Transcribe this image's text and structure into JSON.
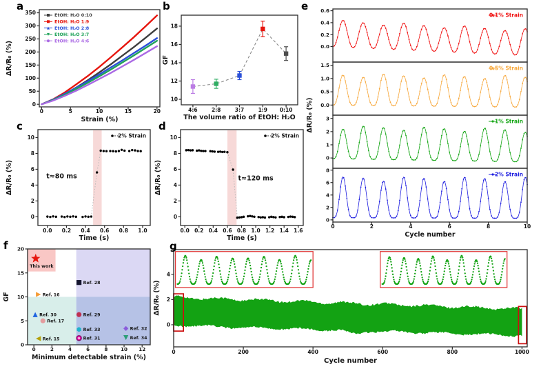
{
  "panel_labels": {
    "a": "a",
    "b": "b",
    "c": "c",
    "d": "d",
    "e": "e",
    "f": "f",
    "g": "g"
  },
  "colors": {
    "frame": "#2b2b2b",
    "text": "#151515",
    "sensor_blue": "#1a18e8",
    "shade_pink": "#f7d9d8",
    "endurance_green": "#13a213",
    "inset_border": "#e23b3b",
    "zoom_box": "#cc1010"
  },
  "chart_data": [
    {
      "panel": "a",
      "type": "line",
      "xlabel": "Strain (%)",
      "ylabel": "ΔR/R₀ (%)",
      "xlim": [
        -0.4,
        20.5
      ],
      "ylim": [
        -10,
        362
      ],
      "xticks": [
        [
          0,
          "0"
        ],
        [
          5,
          "5"
        ],
        [
          10,
          "10"
        ],
        [
          15,
          "15"
        ],
        [
          20,
          "20"
        ]
      ],
      "yticks": [
        [
          0,
          "0"
        ],
        [
          50,
          "50"
        ],
        [
          100,
          "100"
        ],
        [
          150,
          "150"
        ],
        [
          200,
          "200"
        ],
        [
          250,
          "250"
        ],
        [
          300,
          "300"
        ],
        [
          350,
          "350"
        ]
      ],
      "x": [
        0,
        2,
        4,
        6,
        8,
        10,
        12,
        14,
        16,
        18,
        20
      ],
      "legend_position": "top-left",
      "series": [
        {
          "name": "EtOH: H₂O 0:10",
          "color": "#3d3d3d",
          "marker": "square",
          "values": [
            0,
            16,
            39,
            64,
            92,
            122,
            153,
            186,
            219,
            254,
            290
          ]
        },
        {
          "name": "EtOH: H₂O 1:9",
          "color": "#e6150d",
          "marker": "square",
          "values": [
            0,
            19,
            45,
            76,
            108,
            143,
            180,
            218,
            257,
            298,
            340
          ]
        },
        {
          "name": "EtOH: H₂O 2:8",
          "color": "#2b50d9",
          "marker": "triangle-up",
          "values": [
            0,
            18,
            40,
            63,
            88,
            114,
            141,
            168,
            196,
            224,
            253
          ]
        },
        {
          "name": "EtOH: H₂O 3:7",
          "color": "#20a35a",
          "marker": "triangle-down",
          "values": [
            0,
            16,
            36,
            59,
            82,
            107,
            133,
            160,
            187,
            215,
            243
          ]
        },
        {
          "name": "EtOH: H₂O 4:6",
          "color": "#aa69e4",
          "marker": "circle",
          "values": [
            0,
            14,
            32,
            52,
            74,
            97,
            120,
            145,
            170,
            196,
            222
          ]
        }
      ]
    },
    {
      "panel": "b",
      "type": "scatter-error",
      "xlabel": "The volume ratio of EtOH: H₂O",
      "ylabel": "GF",
      "categories": [
        "4:6",
        "2:8",
        "3:7",
        "1:9",
        "0:10"
      ],
      "values": [
        11.4,
        11.7,
        12.6,
        17.7,
        15.0
      ],
      "errors": [
        0.75,
        0.5,
        0.45,
        0.85,
        0.75
      ],
      "colors": [
        "#bb7ce4",
        "#2fae63",
        "#2b50d9",
        "#e6150d",
        "#4c4c4c"
      ],
      "ylim": [
        9.4,
        19.2
      ],
      "yticks": [
        [
          10,
          "10"
        ],
        [
          12,
          "12"
        ],
        [
          14,
          "14"
        ],
        [
          16,
          "16"
        ],
        [
          18,
          "18"
        ]
      ],
      "connector": "dashed"
    },
    {
      "panel": "c",
      "type": "scatter",
      "xlabel": "Time (s)",
      "ylabel": "ΔR/R₀ (%)",
      "legend": "2% Strain",
      "annotation": "t≈80 ms",
      "annotation_xy": [
        0.15,
        4.85
      ],
      "response_region": [
        0.48,
        0.57
      ],
      "xlim": [
        -0.1,
        1.08
      ],
      "ylim": [
        -1.1,
        11
      ],
      "xticks": [
        [
          0,
          "0.0"
        ],
        [
          0.2,
          "0.2"
        ],
        [
          0.4,
          "0.4"
        ],
        [
          0.6,
          "0.6"
        ],
        [
          0.8,
          "0.8"
        ],
        [
          1.0,
          "1.0"
        ]
      ],
      "yticks": [
        [
          0,
          "0"
        ],
        [
          2,
          "2"
        ],
        [
          4,
          "4"
        ],
        [
          6,
          "6"
        ],
        [
          8,
          "8"
        ],
        [
          10,
          "10"
        ]
      ],
      "points_x": [
        0.0,
        0.03,
        0.06,
        0.09,
        0.15,
        0.18,
        0.21,
        0.24,
        0.27,
        0.3,
        0.37,
        0.4,
        0.43,
        0.46,
        0.52,
        0.56,
        0.59,
        0.62,
        0.66,
        0.69,
        0.72,
        0.75,
        0.78,
        0.81,
        0.86,
        0.89,
        0.92,
        0.95,
        0.98
      ],
      "points_y": [
        0.02,
        -0.02,
        0.05,
        0.0,
        0.03,
        -0.03,
        0.04,
        0.0,
        0.05,
        0.0,
        -0.02,
        0.04,
        0.0,
        0.03,
        5.6,
        8.35,
        8.3,
        8.28,
        8.3,
        8.28,
        8.25,
        8.3,
        8.45,
        8.35,
        8.3,
        8.42,
        8.38,
        8.3,
        8.28
      ],
      "transition_index": 14
    },
    {
      "panel": "d",
      "type": "scatter",
      "xlabel": "Time (s)",
      "ylabel": "ΔR/R₀ (%)",
      "legend": "2% Strain",
      "annotation": "t≈120 ms",
      "annotation_xy": [
        1.0,
        4.6
      ],
      "response_region": [
        0.6,
        0.73
      ],
      "xlim": [
        -0.06,
        1.67
      ],
      "ylim": [
        -1.1,
        11
      ],
      "xticks": [
        [
          0,
          "0.0"
        ],
        [
          0.2,
          "0.2"
        ],
        [
          0.4,
          "0.4"
        ],
        [
          0.6,
          "0.6"
        ],
        [
          0.8,
          "0.8"
        ],
        [
          1.0,
          "1.0"
        ],
        [
          1.2,
          "1.2"
        ],
        [
          1.4,
          "1.4"
        ],
        [
          1.6,
          "1.6"
        ]
      ],
      "yticks": [
        [
          0,
          "0"
        ],
        [
          2,
          "2"
        ],
        [
          4,
          "4"
        ],
        [
          6,
          "6"
        ],
        [
          8,
          "8"
        ],
        [
          10,
          "10"
        ]
      ],
      "points_x": [
        0.02,
        0.05,
        0.08,
        0.11,
        0.17,
        0.2,
        0.23,
        0.26,
        0.29,
        0.36,
        0.39,
        0.42,
        0.47,
        0.5,
        0.53,
        0.56,
        0.6,
        0.68,
        0.74,
        0.77,
        0.8,
        0.83,
        0.89,
        0.92,
        0.95,
        0.98,
        1.04,
        1.07,
        1.1,
        1.13,
        1.19,
        1.22,
        1.25,
        1.28,
        1.34,
        1.37,
        1.4,
        1.46,
        1.49,
        1.52,
        1.55
      ],
      "points_y": [
        8.4,
        8.42,
        8.38,
        8.4,
        8.35,
        8.38,
        8.32,
        8.3,
        8.3,
        8.28,
        8.25,
        8.22,
        8.2,
        8.22,
        8.18,
        8.2,
        8.15,
        5.95,
        -0.12,
        -0.08,
        -0.05,
        0.0,
        0.06,
        0.1,
        0.05,
        0.0,
        -0.03,
        -0.08,
        -0.05,
        -0.1,
        -0.06,
        0.0,
        -0.04,
        -0.08,
        -0.03,
        0.0,
        -0.05,
        -0.02,
        0.03,
        0.0,
        -0.04
      ],
      "transition_index": 17
    },
    {
      "panel": "e",
      "type": "line",
      "xlabel": "Cycle number",
      "ylabel": "ΔR/R₀ (%)",
      "xlim": [
        0,
        10
      ],
      "xticks": [
        [
          0,
          "0"
        ],
        [
          2,
          "2"
        ],
        [
          4,
          "4"
        ],
        [
          6,
          "6"
        ],
        [
          8,
          "8"
        ],
        [
          10,
          "10"
        ]
      ],
      "subpanels": [
        {
          "legend": "0.1% Strain",
          "color": "#f01010",
          "amplitude": 0.45,
          "valley_start": 0.0,
          "valley_end": -0.15,
          "cycles": 9.6,
          "sharp": 1.2,
          "ylim": [
            -0.26,
            0.63
          ],
          "yticks": [
            [
              0,
              "0.0"
            ],
            [
              0.2,
              "0.2"
            ],
            [
              0.4,
              "0.4"
            ],
            [
              0.6,
              "0.6"
            ]
          ]
        },
        {
          "legend": "0.5% Strain",
          "color": "#f7a93e",
          "amplitude": 1.2,
          "valley_start": 0.0,
          "valley_end": -0.08,
          "cycles": 9.6,
          "sharp": 1.5,
          "ylim": [
            -0.38,
            1.62
          ],
          "yticks": [
            [
              0,
              "0.0"
            ],
            [
              0.5,
              "0.5"
            ],
            [
              1.0,
              "1.0"
            ],
            [
              1.5,
              "1.5"
            ]
          ]
        },
        {
          "legend": "1% Strain",
          "color": "#16a616",
          "amplitude": 2.55,
          "valley_start": -0.05,
          "valley_end": -0.3,
          "cycles": 9.6,
          "sharp": 1.7,
          "ylim": [
            -0.78,
            3.25
          ],
          "yticks": [
            [
              0,
              "0"
            ],
            [
              1,
              "1"
            ],
            [
              2,
              "2"
            ],
            [
              3,
              "3"
            ]
          ]
        },
        {
          "legend": "2% Strain",
          "color": "#1d1ddf",
          "amplitude": 6.7,
          "valley_start": 0.35,
          "valley_end": 0.25,
          "cycles": 9.6,
          "sharp": 2.0,
          "ylim": [
            -0.35,
            8.3
          ],
          "yticks": [
            [
              0,
              "0"
            ],
            [
              2,
              "2"
            ],
            [
              4,
              "4"
            ],
            [
              6,
              "6"
            ],
            [
              8,
              "8"
            ]
          ]
        }
      ]
    },
    {
      "panel": "f",
      "type": "scatter",
      "xlabel": "Minimum detectable strain (%)",
      "ylabel": "GF",
      "xlim": [
        -0.7,
        12.9
      ],
      "ylim": [
        0,
        20
      ],
      "xticks": [
        [
          0,
          "0"
        ],
        [
          2,
          "2"
        ],
        [
          4,
          "4"
        ],
        [
          6,
          "6"
        ],
        [
          8,
          "8"
        ],
        [
          10,
          "10"
        ],
        [
          12,
          "12"
        ]
      ],
      "yticks": [
        [
          0,
          "0"
        ],
        [
          5,
          "5"
        ],
        [
          10,
          "10"
        ],
        [
          15,
          "15"
        ],
        [
          20,
          "20"
        ]
      ],
      "regions": [
        {
          "x0": -0.7,
          "x1": 4.7,
          "y0": 0,
          "y1": 10,
          "color": "#d8eeea"
        },
        {
          "x0": 4.7,
          "x1": 12.9,
          "y0": 0,
          "y1": 10,
          "color": "#b6c2e6"
        },
        {
          "x0": 4.7,
          "x1": 12.9,
          "y0": 10,
          "y1": 20,
          "color": "#dbd8f4"
        },
        {
          "x0": -0.7,
          "x1": 2.4,
          "y0": 15.3,
          "y1": 20,
          "color": "#f9c7c5"
        }
      ],
      "points": [
        {
          "label": "This work",
          "marker": "star",
          "color": "#e6150d",
          "x": 0.2,
          "y": 18.0,
          "lpos": "below"
        },
        {
          "label": "Ref. 16",
          "marker": "triangle-right",
          "color": "#f59b35",
          "x": 0.5,
          "y": 10.5,
          "lpos": "right"
        },
        {
          "label": "Ref. 28",
          "marker": "square",
          "color": "#15152e",
          "x": 5.0,
          "y": 13.0,
          "lpos": "right"
        },
        {
          "label": "Ref. 30",
          "marker": "triangle-up",
          "color": "#1f64e0",
          "x": 0.15,
          "y": 6.3,
          "lpos": "right"
        },
        {
          "label": "Ref. 17",
          "marker": "circle",
          "color": "#e49c9e",
          "x": 1.0,
          "y": 5.0,
          "lpos": "right"
        },
        {
          "label": "Ref. 15",
          "marker": "triangle-left",
          "color": "#b3a007",
          "x": 0.5,
          "y": 1.3,
          "lpos": "right"
        },
        {
          "label": "Ref. 29",
          "marker": "circle",
          "color": "#bf3050",
          "x": 5.0,
          "y": 6.3,
          "lpos": "right"
        },
        {
          "label": "Ref. 33",
          "marker": "hexagon",
          "color": "#1fb2cb",
          "x": 5.0,
          "y": 3.2,
          "lpos": "right"
        },
        {
          "label": "Ref. 31",
          "marker": "circle-ring",
          "color": "#e512a5",
          "x": 5.0,
          "y": 1.4,
          "lpos": "right"
        },
        {
          "label": "Ref. 32",
          "marker": "diamond",
          "color": "#8a5cdb",
          "x": 10.2,
          "y": 3.4,
          "lpos": "right"
        },
        {
          "label": "Ref. 34",
          "marker": "triangle-down",
          "color": "#2b9e77",
          "x": 10.2,
          "y": 1.5,
          "lpos": "right"
        }
      ]
    },
    {
      "panel": "g",
      "type": "area-band",
      "xlabel": "Cycle number",
      "ylabel": "ΔR/R₀ (%)",
      "xlim": [
        0,
        1015
      ],
      "ylim": [
        -1.75,
        5.95
      ],
      "xticks": [
        [
          0,
          "0"
        ],
        [
          200,
          "200"
        ],
        [
          400,
          "400"
        ],
        [
          600,
          "600"
        ],
        [
          800,
          "800"
        ],
        [
          1000,
          "1000"
        ]
      ],
      "yticks": [
        [
          0,
          "0"
        ],
        [
          2,
          "2"
        ],
        [
          4,
          "4"
        ]
      ],
      "color": "#13a213",
      "envelope": {
        "top_start": 2.18,
        "top_end": 1.25,
        "bottom_start": -0.04,
        "bottom_end": -0.85
      },
      "insets": [
        {
          "x0": 5,
          "x1": 400,
          "y0": 2.95,
          "y1": 5.8,
          "cycles": 8.5
        },
        {
          "x0": 593,
          "x1": 957,
          "y0": 2.95,
          "y1": 5.8,
          "cycles": 8.5
        }
      ],
      "zoom_boxes": [
        {
          "x0": 0,
          "x1": 28,
          "y0": -0.5,
          "y1": 2.45
        },
        {
          "x0": 990,
          "x1": 1013,
          "y0": -1.5,
          "y1": 1.45
        }
      ]
    }
  ]
}
